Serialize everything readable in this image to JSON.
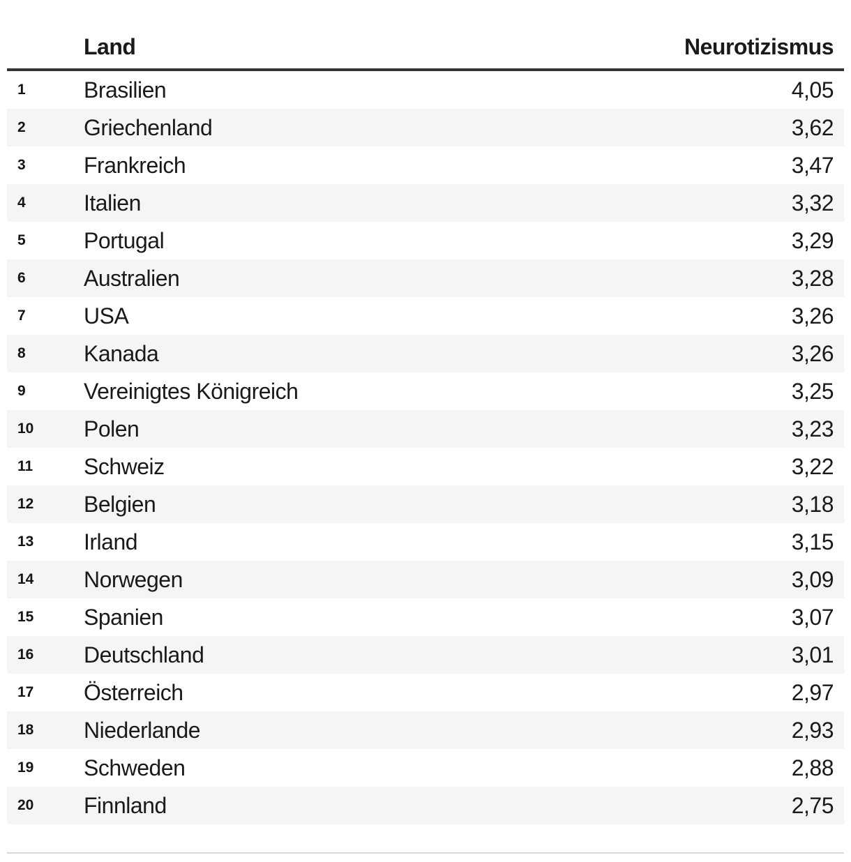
{
  "table": {
    "header": {
      "country_label": "Land",
      "value_label": "Neurotizismus"
    },
    "rows": [
      {
        "rank": "1",
        "country": "Brasilien",
        "value": "4,05"
      },
      {
        "rank": "2",
        "country": "Griechenland",
        "value": "3,62"
      },
      {
        "rank": "3",
        "country": "Frankreich",
        "value": "3,47"
      },
      {
        "rank": "4",
        "country": "Italien",
        "value": "3,32"
      },
      {
        "rank": "5",
        "country": "Portugal",
        "value": "3,29"
      },
      {
        "rank": "6",
        "country": "Australien",
        "value": "3,28"
      },
      {
        "rank": "7",
        "country": "USA",
        "value": "3,26"
      },
      {
        "rank": "8",
        "country": "Kanada",
        "value": "3,26"
      },
      {
        "rank": "9",
        "country": "Vereinigtes Königreich",
        "value": "3,25"
      },
      {
        "rank": "10",
        "country": "Polen",
        "value": "3,23"
      },
      {
        "rank": "11",
        "country": "Schweiz",
        "value": "3,22"
      },
      {
        "rank": "12",
        "country": "Belgien",
        "value": "3,18"
      },
      {
        "rank": "13",
        "country": "Irland",
        "value": "3,15"
      },
      {
        "rank": "14",
        "country": "Norwegen",
        "value": "3,09"
      },
      {
        "rank": "15",
        "country": "Spanien",
        "value": "3,07"
      },
      {
        "rank": "16",
        "country": "Deutschland",
        "value": "3,01"
      },
      {
        "rank": "17",
        "country": "Österreich",
        "value": "2,97"
      },
      {
        "rank": "18",
        "country": "Niederlande",
        "value": "2,93"
      },
      {
        "rank": "19",
        "country": "Schweden",
        "value": "2,88"
      },
      {
        "rank": "20",
        "country": "Finnland",
        "value": "2,75"
      }
    ]
  },
  "chart_data": {
    "type": "table",
    "title": "",
    "columns": [
      "",
      "Land",
      "Neurotizismus"
    ],
    "categories": [
      "Brasilien",
      "Griechenland",
      "Frankreich",
      "Italien",
      "Portugal",
      "Australien",
      "USA",
      "Kanada",
      "Vereinigtes Königreich",
      "Polen",
      "Schweiz",
      "Belgien",
      "Irland",
      "Norwegen",
      "Spanien",
      "Deutschland",
      "Österreich",
      "Niederlande",
      "Schweden",
      "Finnland"
    ],
    "values": [
      4.05,
      3.62,
      3.47,
      3.32,
      3.29,
      3.28,
      3.26,
      3.26,
      3.25,
      3.23,
      3.22,
      3.18,
      3.15,
      3.09,
      3.07,
      3.01,
      2.97,
      2.93,
      2.88,
      2.75
    ],
    "decimal_separator": ",",
    "layout_hints": {
      "zebra_stripes": "even rows",
      "value_alignment": "right",
      "header_rule": "thick dark line below header"
    }
  },
  "colors": {
    "bg": "#ffffff",
    "text": "#1a1a1a",
    "rank": "#151515",
    "stripe": "#f5f5f6",
    "rule": "#333333",
    "divider": "#d8d8d8"
  }
}
